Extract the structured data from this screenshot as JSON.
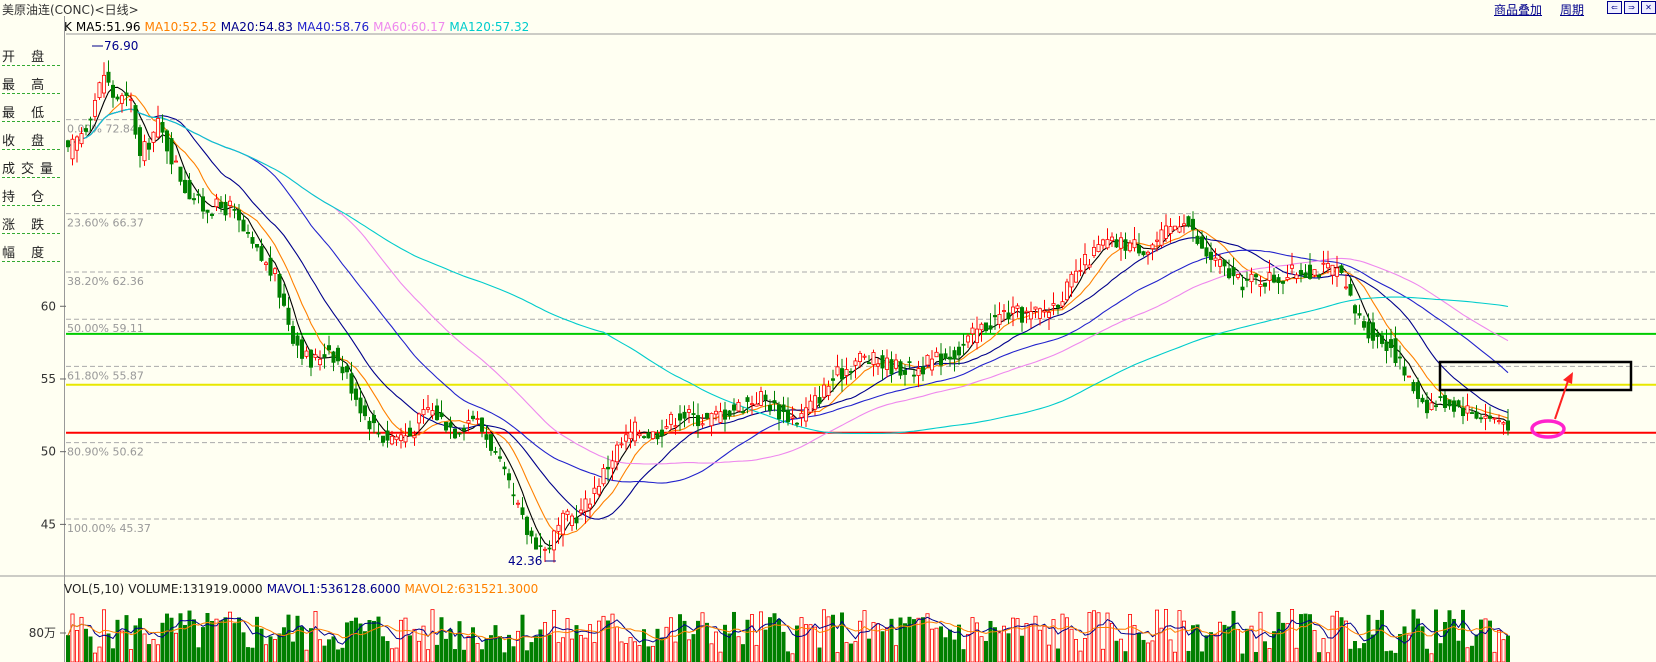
{
  "title": "美原油连(CONC)<日线>",
  "buttons": {
    "overlay": "商品叠加",
    "period": "周期"
  },
  "left_panel": {
    "items": [
      "开 盘",
      "最 高",
      "最 低",
      "收 盘",
      "成交量",
      "持 仓",
      "涨 跌",
      "幅 度"
    ]
  },
  "price_legend": {
    "label": "K",
    "items": [
      {
        "text": "MA5:51.96",
        "color": "#000000"
      },
      {
        "text": "MA10:52.52",
        "color": "#ff8000"
      },
      {
        "text": "MA20:54.83",
        "color": "#00008b"
      },
      {
        "text": "MA40:58.76",
        "color": "#2222cc"
      },
      {
        "text": "MA60:60.17",
        "color": "#ee88ee"
      },
      {
        "text": "MA120:57.32",
        "color": "#00cccc"
      }
    ]
  },
  "volume_legend": {
    "items": [
      {
        "text": "VOL(5,10)",
        "color": "#222222"
      },
      {
        "text": "VOLUME:131919.0000",
        "color": "#222222"
      },
      {
        "text": "MAVOL1:536128.6000",
        "color": "#00008b"
      },
      {
        "text": "MAVOL2:631521.3000",
        "color": "#ff8000"
      }
    ]
  },
  "chart_data": {
    "type": "candlestick",
    "y_axis": {
      "ticks": [
        45,
        50,
        55,
        60
      ],
      "range": [
        42,
        79
      ]
    },
    "volume_axis": {
      "tick_label": "80万"
    },
    "high_label": "76.90",
    "low_label": "42.36",
    "fibonacci": [
      {
        "label": "0.00% 72.84",
        "value": 72.84
      },
      {
        "label": "23.60% 66.37",
        "value": 66.37
      },
      {
        "label": "38.20% 62.36",
        "value": 62.36
      },
      {
        "label": "50.00% 59.11",
        "value": 59.11
      },
      {
        "label": "61.80% 55.87",
        "value": 55.87
      },
      {
        "label": "80.90% 50.62",
        "value": 50.62
      },
      {
        "label": "100.00% 45.37",
        "value": 45.37
      }
    ],
    "horizontal_lines": [
      {
        "value": 58.1,
        "color": "#00cc00"
      },
      {
        "value": 54.6,
        "color": "#e8e800"
      },
      {
        "value": 51.3,
        "color": "#ff0000"
      }
    ],
    "annotation_colors": {
      "box": "#000000",
      "arrow": "#ff2222",
      "ellipse": "#ff22cc"
    },
    "close_anchors": [
      [
        0,
        70.5
      ],
      [
        4,
        72.5
      ],
      [
        8,
        76.0
      ],
      [
        10,
        74.5
      ],
      [
        14,
        74.0
      ],
      [
        16,
        70.2
      ],
      [
        20,
        72.5
      ],
      [
        26,
        68.2
      ],
      [
        30,
        66.8
      ],
      [
        36,
        66.8
      ],
      [
        40,
        64.5
      ],
      [
        46,
        62.0
      ],
      [
        50,
        58.0
      ],
      [
        54,
        56.0
      ],
      [
        58,
        57.2
      ],
      [
        62,
        55.2
      ],
      [
        66,
        52.5
      ],
      [
        70,
        51.0
      ],
      [
        76,
        51.2
      ],
      [
        80,
        53.0
      ],
      [
        86,
        51.5
      ],
      [
        90,
        52.5
      ],
      [
        94,
        50.5
      ],
      [
        98,
        47.5
      ],
      [
        102,
        44.5
      ],
      [
        106,
        43.2
      ],
      [
        110,
        45.2
      ],
      [
        114,
        45.8
      ],
      [
        118,
        48.0
      ],
      [
        122,
        50.2
      ],
      [
        126,
        51.5
      ],
      [
        130,
        51.2
      ],
      [
        136,
        52.6
      ],
      [
        142,
        52.2
      ],
      [
        148,
        53.0
      ],
      [
        154,
        53.8
      ],
      [
        158,
        52.8
      ],
      [
        162,
        52.2
      ],
      [
        166,
        53.5
      ],
      [
        170,
        55.0
      ],
      [
        176,
        56.5
      ],
      [
        182,
        56.0
      ],
      [
        188,
        55.6
      ],
      [
        194,
        56.5
      ],
      [
        198,
        57.0
      ],
      [
        202,
        58.3
      ],
      [
        208,
        59.5
      ],
      [
        214,
        59.4
      ],
      [
        218,
        59.8
      ],
      [
        222,
        61.2
      ],
      [
        226,
        63.0
      ],
      [
        230,
        64.3
      ],
      [
        236,
        64.3
      ],
      [
        240,
        64.0
      ],
      [
        244,
        65.0
      ],
      [
        248,
        66.2
      ],
      [
        252,
        63.8
      ],
      [
        256,
        62.8
      ],
      [
        260,
        61.6
      ],
      [
        266,
        61.9
      ],
      [
        270,
        62.0
      ],
      [
        274,
        62.5
      ],
      [
        278,
        62.5
      ],
      [
        282,
        62.5
      ],
      [
        286,
        59.6
      ],
      [
        290,
        58.0
      ],
      [
        294,
        57.3
      ],
      [
        298,
        54.8
      ],
      [
        302,
        53.2
      ],
      [
        306,
        53.5
      ],
      [
        310,
        53.0
      ],
      [
        314,
        52.5
      ],
      [
        320,
        52.0
      ]
    ]
  }
}
